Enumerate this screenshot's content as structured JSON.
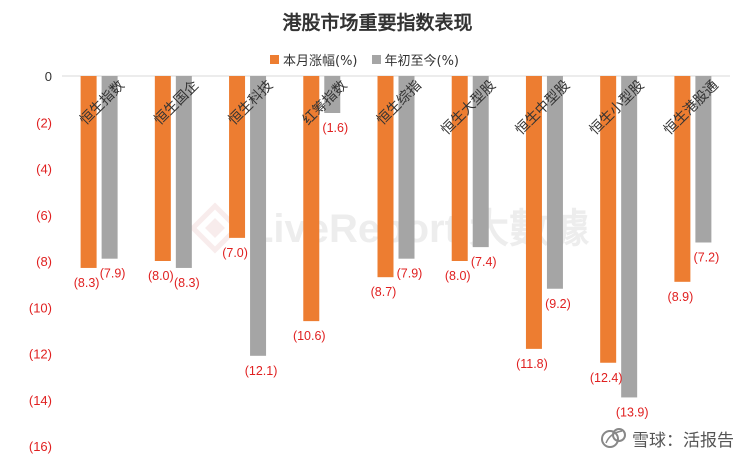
{
  "chart_data": {
    "type": "bar",
    "title": "港股市场重要指数表现",
    "categories": [
      "恒生指数",
      "恒生国企",
      "恒生科技",
      "红筹指数",
      "恒生综指",
      "恒生大型股",
      "恒生中型股",
      "恒生小型股",
      "恒生港股通"
    ],
    "series": [
      {
        "name": "本月涨幅(%)",
        "color": "#ED7D31",
        "values": [
          -8.3,
          -8.0,
          -7.0,
          -10.6,
          -8.7,
          -8.0,
          -11.8,
          -12.4,
          -8.9
        ],
        "labels": [
          "(8.3)",
          "(8.0)",
          "(7.0)",
          "(10.6)",
          "(8.7)",
          "(8.0)",
          "(11.8)",
          "(12.4)",
          "(8.9)"
        ]
      },
      {
        "name": "年初至今(%)",
        "color": "#A5A5A5",
        "values": [
          -7.9,
          -8.3,
          -12.1,
          -1.6,
          -7.9,
          -7.4,
          -9.2,
          -13.9,
          -7.2
        ],
        "labels": [
          "(7.9)",
          "(8.3)",
          "(12.1)",
          "(1.6)",
          "(7.9)",
          "(7.4)",
          "(9.2)",
          "(13.9)",
          "(7.2)"
        ]
      }
    ],
    "ylim": [
      -16,
      0
    ],
    "yticks": [
      0,
      -2,
      -4,
      -6,
      -8,
      -10,
      -12,
      -14,
      -16
    ],
    "ytick_labels": [
      "0",
      "(2)",
      "(4)",
      "(6)",
      "(8)",
      "(10)",
      "(12)",
      "(14)",
      "(16)"
    ],
    "grid": false,
    "legend_position": "top",
    "label_color": "#E02020"
  },
  "watermark": {
    "background_brand": "LiveReport 大數據",
    "corner_text": "雪球：活报告"
  }
}
